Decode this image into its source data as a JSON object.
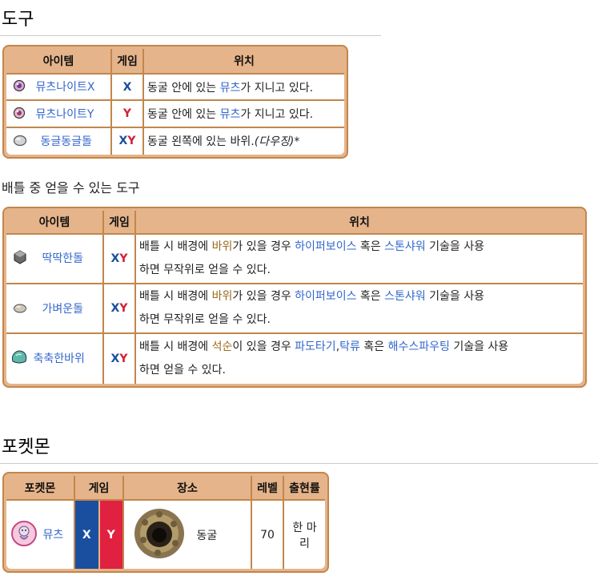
{
  "section_items": {
    "title": "도구",
    "table1": {
      "headers": [
        "아이템",
        "게임",
        "위치"
      ],
      "rows": [
        {
          "item": "뮤츠나이트X",
          "game_x": "X",
          "game_y": "",
          "loc_pre": "동굴 안에 있는 ",
          "loc_link": "뮤츠",
          "loc_post": "가 지니고 있다.",
          "icon": "mewtwonite-x-icon"
        },
        {
          "item": "뮤츠나이트Y",
          "game_x": "",
          "game_y": "Y",
          "loc_pre": "동굴 안에 있는 ",
          "loc_link": "뮤츠",
          "loc_post": "가 지니고 있다.",
          "icon": "mewtwonite-y-icon"
        },
        {
          "item": "동글동글돌",
          "game_x": "X",
          "game_y": "Y",
          "loc_pre": "동굴 왼쪽에 있는 바위.",
          "loc_italic": "(다우징)",
          "loc_post": "*",
          "icon": "round-stone-icon"
        }
      ]
    },
    "battle_caption": "배틀 중 얻을 수 있는 도구",
    "table2": {
      "headers": [
        "아이템",
        "게임",
        "위치"
      ],
      "rows": [
        {
          "item": "딱딱한돌",
          "game_x": "X",
          "game_y": "Y",
          "line1_a": "배틀 시 배경에 ",
          "line1_b": "바위",
          "line1_c": "가 있을 경우 ",
          "line1_d": "하이퍼보이스",
          "line1_e": " 혹은 ",
          "line1_f": "스톤샤워",
          "line1_g": " 기술을 사용",
          "line2": "하면 무작위로 얻을 수 있다.",
          "icon": "hard-stone-icon"
        },
        {
          "item": "가벼운돌",
          "game_x": "X",
          "game_y": "Y",
          "line1_a": "배틀 시 배경에 ",
          "line1_b": "바위",
          "line1_c": "가 있을 경우 ",
          "line1_d": "하이퍼보이스",
          "line1_e": " 혹은 ",
          "line1_f": "스톤샤워",
          "line1_g": " 기술을 사용",
          "line2": "하면 무작위로 얻을 수 있다.",
          "icon": "float-stone-icon"
        },
        {
          "item": "축축한바위",
          "game_x": "X",
          "game_y": "Y",
          "line1_a": "배틀 시 배경에 ",
          "line1_b": "석순",
          "line1_c": "이 있을 경우 ",
          "line1_d": "파도타기",
          "line1_e": ",",
          "line1_f": "탁류",
          "line1_g": " 혹은 ",
          "line1_h": "해수스파우팅",
          "line1_i": " 기술을 사용",
          "line2": "하면 얻을 수 있다.",
          "icon": "damp-rock-icon"
        }
      ]
    }
  },
  "section_pokemon": {
    "title": "포켓몬",
    "headers": [
      "포켓몬",
      "게임",
      "장소",
      "레벨",
      "출현률"
    ],
    "rows": [
      {
        "pokemon": "뮤츠",
        "game_x": "X",
        "game_y": "Y",
        "place": "동굴",
        "level": "70",
        "rate": "한 마리"
      }
    ]
  },
  "colors": {
    "x_blue": "#1a4fa0",
    "y_red": "#d3213a",
    "table_border": "#c3864c",
    "table_header": "#e5b48a",
    "link": "#3366cc",
    "brown_link": "#9b6b1e"
  }
}
